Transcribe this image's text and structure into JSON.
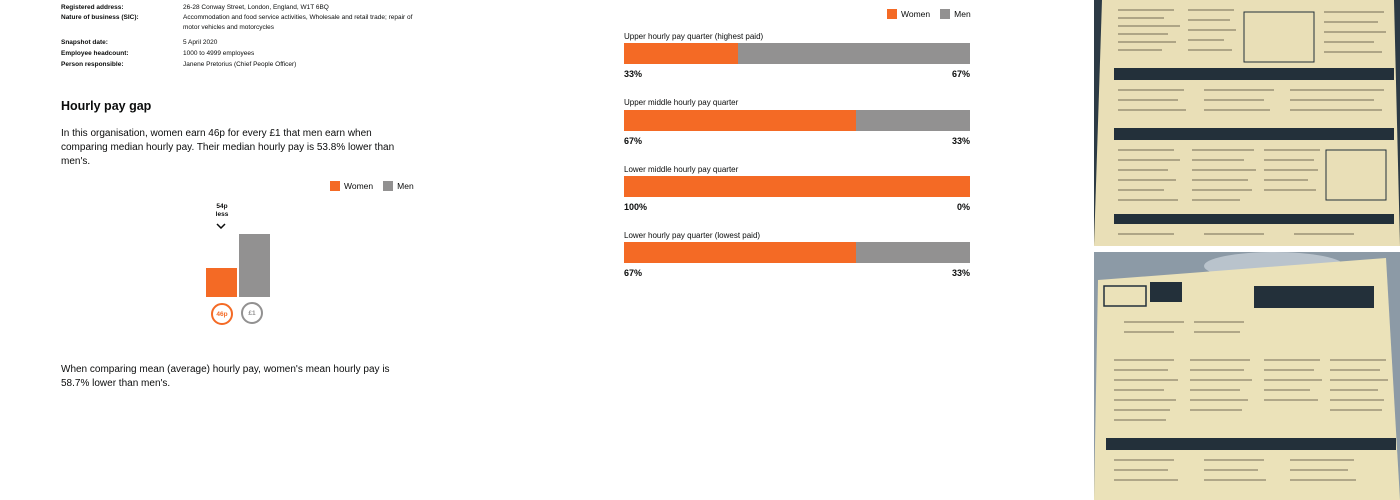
{
  "details": [
    {
      "label": "Registered address:",
      "value": "26-28 Conway Street, London, England, W1T 6BQ"
    },
    {
      "label": "Nature of business (SIC):",
      "value": "Accommodation and food service activities, Wholesale and retail trade; repair of motor vehicles and motorcycles"
    },
    {
      "label": "Snapshot date:",
      "value": "5 April 2020"
    },
    {
      "label": "Employee headcount:",
      "value": "1000 to 4999 employees"
    },
    {
      "label": "Person responsible:",
      "value": "Janene Pretorius (Chief People Officer)"
    }
  ],
  "hourly_gap": {
    "heading": "Hourly pay gap",
    "median_text": "In this organisation, women earn 46p for every £1 that men earn when comparing median hourly pay. Their median hourly pay is 53.8% lower than men's.",
    "mean_text": "When comparing mean (average) hourly pay, women's mean hourly pay is 58.7% lower than men's.",
    "gap_label_line1": "54p",
    "gap_label_line2": "less",
    "women_value": 0.46,
    "men_value": 1.0,
    "women_circle": "46p",
    "men_circle": "£1"
  },
  "legend": {
    "women": "Women",
    "men": "Men"
  },
  "colors": {
    "women": "#f46a25",
    "men": "#929191",
    "text": "#0b0c0c"
  },
  "chart_data": {
    "type": "bar",
    "orientation": "horizontal-stacked",
    "categories": [
      "Upper hourly pay quarter (highest paid)",
      "Upper middle hourly pay quarter",
      "Lower middle hourly pay quarter",
      "Lower hourly pay quarter (lowest paid)"
    ],
    "series": [
      {
        "name": "Women",
        "values": [
          33,
          67,
          100,
          67
        ]
      },
      {
        "name": "Men",
        "values": [
          67,
          33,
          0,
          33
        ]
      }
    ],
    "labels": [
      {
        "women": "33%",
        "men": "67%"
      },
      {
        "women": "67%",
        "men": "33%"
      },
      {
        "women": "100%",
        "men": "0%"
      },
      {
        "women": "67%",
        "men": "33%"
      }
    ],
    "legend_position": "top-right",
    "xlim": [
      0,
      100
    ]
  },
  "photos": [
    {
      "name": "menu-photo-top",
      "icon": "menu-photo"
    },
    {
      "name": "menu-photo-bottom",
      "icon": "menu-photo"
    }
  ]
}
